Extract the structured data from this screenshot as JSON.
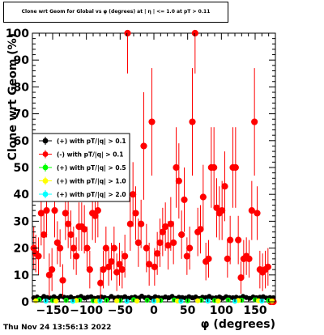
{
  "chart_data": {
    "type": "scatter",
    "title": "Clone wrt Geom for Global vs φ (degrees) at | η | <= 1.0 at pT > 0.11",
    "xlabel": "φ (degrees)",
    "ylabel": "Clone wrt Geom (%)",
    "xlim": [
      -180,
      180
    ],
    "ylim": [
      0,
      100
    ],
    "x_ticks": [
      -150,
      -100,
      -50,
      0,
      50,
      100,
      150
    ],
    "y_ticks": [
      0,
      10,
      20,
      30,
      40,
      50,
      60,
      70,
      80,
      90,
      100
    ],
    "x_tick_labels": [
      "−150",
      "−100",
      "−50",
      "0",
      "50",
      "100",
      "150"
    ],
    "y_tick_labels": [
      "0",
      "10",
      "20",
      "30",
      "40",
      "50",
      "60",
      "70",
      "80",
      "90",
      "100"
    ],
    "grid": false,
    "legend_position": "left-middle",
    "series": [
      {
        "name": "(+) with pT/|q| > 0.1",
        "color": "#000000",
        "marker": "circle",
        "x": [
          -178,
          -173,
          -168,
          -163,
          -158,
          -153,
          -148,
          -143,
          -138,
          -133,
          -128,
          -123,
          -118,
          -113,
          -108,
          -103,
          -98,
          -93,
          -88,
          -83,
          -78,
          -73,
          -68,
          -63,
          -58,
          -53,
          -48,
          -43,
          -38,
          -33,
          -28,
          -23,
          -18,
          -13,
          -8,
          -3,
          2,
          7,
          12,
          17,
          22,
          27,
          32,
          37,
          42,
          47,
          52,
          57,
          62,
          67,
          72,
          77,
          82,
          87,
          92,
          97,
          102,
          107,
          112,
          117,
          122,
          127,
          132,
          137,
          142,
          147,
          152,
          157,
          162,
          167,
          172,
          177
        ],
        "y": [
          1.5,
          1.8,
          1.2,
          2.0,
          1.6,
          1.4,
          1.9,
          1.3,
          2.1,
          1.7,
          1.5,
          1.8,
          1.2,
          1.6,
          2.0,
          1.4,
          1.7,
          1.9,
          1.3,
          1.5,
          1.8,
          1.6,
          1.2,
          2.0,
          1.4,
          1.7,
          1.5,
          1.9,
          1.3,
          1.6,
          1.8,
          1.4,
          2.1,
          1.5,
          1.7,
          1.3,
          1.9,
          1.6,
          1.4,
          1.8,
          1.5,
          2.0,
          1.3,
          1.7,
          1.6,
          1.4,
          1.9,
          1.5,
          1.8,
          1.2,
          1.7,
          1.6,
          2.0,
          1.4,
          1.5,
          1.8,
          1.3,
          1.9,
          1.6,
          1.5,
          1.7,
          1.4,
          2.0,
          1.6,
          1.3,
          1.8,
          1.5,
          1.7,
          1.9,
          1.4,
          1.6,
          1.5
        ],
        "yerr": [
          0.6,
          0.7,
          0.5,
          0.8,
          0.6,
          0.6,
          0.7,
          0.5,
          0.8,
          0.7,
          0.6,
          0.7,
          0.5,
          0.6,
          0.8,
          0.6,
          0.7,
          0.7,
          0.5,
          0.6,
          0.7,
          0.6,
          0.5,
          0.8,
          0.6,
          0.7,
          0.6,
          0.7,
          0.5,
          0.6,
          0.7,
          0.6,
          0.8,
          0.6,
          0.7,
          0.5,
          0.7,
          0.6,
          0.6,
          0.7,
          0.6,
          0.8,
          0.5,
          0.7,
          0.6,
          0.6,
          0.7,
          0.6,
          0.7,
          0.5,
          0.7,
          0.6,
          0.8,
          0.6,
          0.6,
          0.7,
          0.5,
          0.7,
          0.6,
          0.6,
          0.7,
          0.6,
          0.8,
          0.6,
          0.5,
          0.7,
          0.6,
          0.7,
          0.7,
          0.6,
          0.6,
          0.6
        ]
      },
      {
        "name": "(-) with pT/|q| > 0.1",
        "color": "#ff0000",
        "marker": "circle",
        "x": [
          -178,
          -175,
          -171,
          -167,
          -163,
          -159,
          -155,
          -151,
          -147,
          -143,
          -139,
          -135,
          -131,
          -127,
          -123,
          -119,
          -115,
          -111,
          -107,
          -103,
          -99,
          -95,
          -91,
          -87,
          -83,
          -79,
          -75,
          -71,
          -67,
          -63,
          -59,
          -55,
          -51,
          -47,
          -43,
          -39,
          -35,
          -31,
          -27,
          -23,
          -19,
          -15,
          -11,
          -7,
          -3,
          1,
          5,
          9,
          13,
          17,
          21,
          25,
          29,
          33,
          37,
          41,
          45,
          49,
          53,
          57,
          61,
          65,
          69,
          73,
          77,
          81,
          85,
          89,
          93,
          97,
          101,
          105,
          109,
          113,
          117,
          121,
          125,
          129,
          133,
          137,
          141,
          145,
          149,
          153,
          157,
          161,
          165,
          169,
          173,
          177
        ],
        "y": [
          20,
          18,
          17,
          33,
          25,
          34,
          10,
          12,
          34,
          22,
          20,
          8,
          33,
          29,
          25,
          20,
          17,
          28,
          28,
          27,
          20,
          12,
          33,
          32,
          34,
          7,
          12,
          20,
          13,
          15,
          20,
          11,
          14,
          12,
          17,
          100,
          29,
          40,
          33,
          22,
          29,
          58,
          20,
          14,
          67,
          13,
          18,
          22,
          26,
          28,
          21,
          29,
          22,
          50,
          45,
          25,
          38,
          17,
          20,
          67,
          100,
          26,
          27,
          39,
          15,
          16,
          50,
          50,
          35,
          33,
          34,
          43,
          16,
          23,
          50,
          50,
          23,
          9,
          16,
          17,
          16,
          34,
          67,
          33,
          12,
          11,
          12,
          13,
          0,
          0
        ],
        "yerr": [
          8,
          7,
          7,
          12,
          9,
          10,
          8,
          8,
          10,
          8,
          7,
          6,
          10,
          9,
          9,
          8,
          7,
          9,
          9,
          9,
          8,
          7,
          10,
          10,
          10,
          6,
          7,
          8,
          7,
          7,
          8,
          7,
          8,
          7,
          8,
          15,
          10,
          12,
          10,
          9,
          9,
          20,
          9,
          8,
          20,
          7,
          8,
          9,
          9,
          9,
          9,
          10,
          8,
          15,
          14,
          9,
          12,
          7,
          8,
          20,
          15,
          9,
          9,
          12,
          7,
          7,
          15,
          15,
          11,
          10,
          11,
          13,
          7,
          9,
          15,
          15,
          9,
          6,
          7,
          7,
          7,
          11,
          20,
          10,
          7,
          7,
          7,
          7,
          0,
          0
        ]
      },
      {
        "name": "(+) with pT/|q| > 0.5",
        "color": "#00ff00",
        "marker": "circle",
        "x": [
          -170,
          -150,
          -130,
          -110,
          -90,
          -70,
          -50,
          -30,
          -10,
          10,
          30,
          50,
          70,
          90,
          110,
          130,
          150,
          170
        ],
        "y": [
          0.8,
          0.5,
          0.6,
          0.7,
          0.4,
          0.6,
          0.5,
          0.8,
          0.6,
          0.5,
          0.7,
          0.4,
          0.6,
          0.5,
          0.7,
          0.6,
          0.8,
          0.5
        ],
        "yerr": [
          0.3,
          0.3,
          0.3,
          0.3,
          0.2,
          0.3,
          0.3,
          0.3,
          0.3,
          0.3,
          0.3,
          0.2,
          0.3,
          0.3,
          0.3,
          0.3,
          0.3,
          0.3
        ]
      },
      {
        "name": "(+) with pT/|q| > 1.0",
        "color": "#ffff00",
        "marker": "circle",
        "x": [
          -175,
          -145,
          -115,
          -85,
          -55,
          -25,
          5,
          35,
          65,
          95,
          125,
          155,
          175
        ],
        "y": [
          0.4,
          0.3,
          0.5,
          0.3,
          0.4,
          0.3,
          0.5,
          0.3,
          0.4,
          0.3,
          0.5,
          0.4,
          0.3
        ],
        "yerr": [
          0.2,
          0.2,
          0.2,
          0.2,
          0.2,
          0.2,
          0.2,
          0.2,
          0.2,
          0.2,
          0.2,
          0.2,
          0.2
        ]
      },
      {
        "name": "(+) with pT/|q| > 2.0",
        "color": "#00ffff",
        "marker": "circle",
        "x": [
          -160,
          -120,
          -80,
          -40,
          0,
          40,
          80,
          120,
          160
        ],
        "y": [
          0.3,
          0.2,
          0.3,
          0.2,
          0.3,
          0.2,
          0.3,
          0.2,
          0.3
        ],
        "yerr": [
          0.1,
          0.1,
          0.1,
          0.1,
          0.1,
          0.1,
          0.1,
          0.1,
          0.1
        ]
      }
    ]
  },
  "footer": {
    "timestamp": "Thu Nov 24 13:56:13 2022"
  }
}
